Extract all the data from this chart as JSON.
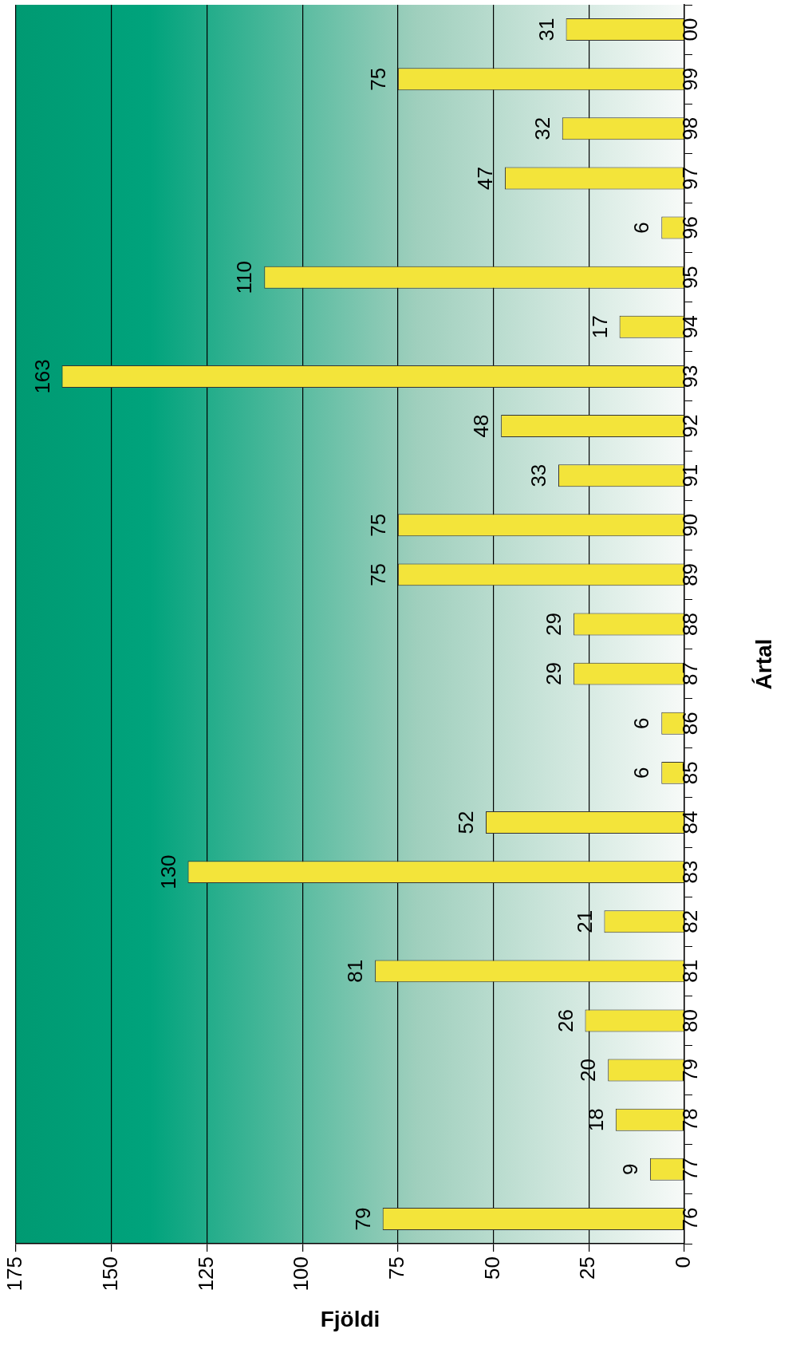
{
  "chart_data": {
    "type": "bar",
    "orientation": "horizontal",
    "xlabel": "Fjöldi",
    "ylabel": "Ártal",
    "categories": [
      "00",
      "99",
      "98",
      "97",
      "96",
      "95",
      "94",
      "93",
      "92",
      "91",
      "90",
      "89",
      "88",
      "87",
      "86",
      "85",
      "84",
      "83",
      "82",
      "81",
      "80",
      "79",
      "78",
      "77",
      "76"
    ],
    "values": [
      31,
      75,
      32,
      47,
      6,
      110,
      17,
      163,
      48,
      33,
      75,
      75,
      29,
      29,
      6,
      6,
      52,
      130,
      21,
      81,
      26,
      20,
      18,
      9,
      79
    ],
    "color": "#f3e43a",
    "xlim": [
      175,
      0
    ],
    "xticks": [
      175,
      150,
      125,
      100,
      75,
      50,
      25,
      0
    ],
    "grid": "x",
    "legend": false,
    "data_labels": true
  }
}
